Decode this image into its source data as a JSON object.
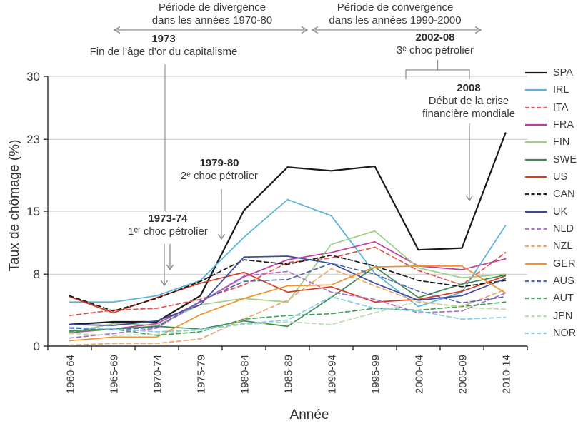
{
  "annotations": {
    "divergence": {
      "line1": "Période de divergence",
      "line2": "dans les années 1970-80"
    },
    "convergence": {
      "line1": "Période de convergence",
      "line2": "dans les années 1990-2000"
    },
    "end_golden_age": {
      "title": "1973",
      "subtitle": "Fin de l’âge d’or du capitalisme"
    },
    "oil_shock_1": {
      "title": "1973-74",
      "subtitle": "1ᵉʳ choc pétrolier"
    },
    "oil_shock_2": {
      "title": "1979-80",
      "subtitle": "2ᵉ choc pétrolier"
    },
    "oil_shock_3": {
      "title": "2002-08",
      "subtitle": "3ᵉ choc pétrolier"
    },
    "crisis_2008": {
      "title": "2008",
      "subtitle1": "Début de la crise",
      "subtitle2": "financière mondiale"
    }
  },
  "chart_data": {
    "type": "line",
    "title": "",
    "xlabel": "Année",
    "ylabel": "Taux de chômage (%)",
    "ylim": [
      0,
      30
    ],
    "yticks": [
      0,
      8,
      15,
      23,
      30
    ],
    "grid": "horizontal",
    "legend_position": "right",
    "axis_color": "#2b2b2b",
    "gridline_color": "#c9c9c9",
    "annotation_line_color": "#8e8e8e",
    "categories": [
      "1960-64",
      "1965-69",
      "1970-74",
      "1975-79",
      "1980-84",
      "1985-89",
      "1990-94",
      "1995-99",
      "2000-04",
      "2005-09",
      "2010-14"
    ],
    "series": [
      {
        "name": "SPA",
        "color": "#1a1a1a",
        "dash": false,
        "values": [
          2.4,
          2.7,
          2.7,
          5.6,
          15.1,
          19.9,
          19.5,
          20.0,
          10.7,
          10.9,
          23.7
        ]
      },
      {
        "name": "IRL",
        "color": "#55b3dc",
        "dash": false,
        "values": [
          4.9,
          4.9,
          5.6,
          7.3,
          12.1,
          16.3,
          14.5,
          8.1,
          4.4,
          6.0,
          13.4
        ]
      },
      {
        "name": "ITA",
        "color": "#e0524b",
        "dash": true,
        "values": [
          3.4,
          4.0,
          4.2,
          5.2,
          6.8,
          9.3,
          9.8,
          11.0,
          8.4,
          6.8,
          10.4
        ]
      },
      {
        "name": "FRA",
        "color": "#bb3d9d",
        "dash": false,
        "values": [
          1.5,
          1.9,
          2.5,
          4.9,
          7.7,
          9.6,
          10.4,
          11.6,
          8.9,
          8.5,
          9.7
        ]
      },
      {
        "name": "FIN",
        "color": "#9ccf85",
        "dash": false,
        "values": [
          1.5,
          2.5,
          2.3,
          4.6,
          5.3,
          4.9,
          11.3,
          12.8,
          8.7,
          7.6,
          8.0
        ]
      },
      {
        "name": "SWE",
        "color": "#3d8a51",
        "dash": false,
        "values": [
          1.7,
          1.9,
          2.2,
          1.9,
          2.8,
          2.2,
          5.4,
          8.8,
          5.4,
          6.9,
          7.9
        ]
      },
      {
        "name": "US",
        "color": "#d63a23",
        "dash": false,
        "values": [
          5.5,
          3.7,
          5.4,
          7.0,
          8.2,
          6.0,
          6.6,
          4.9,
          5.2,
          6.1,
          7.8
        ]
      },
      {
        "name": "CAN",
        "color": "#1a1a1a",
        "dash": true,
        "values": [
          5.6,
          3.9,
          5.3,
          7.2,
          9.6,
          9.1,
          10.1,
          8.9,
          7.3,
          6.6,
          7.3
        ]
      },
      {
        "name": "UK",
        "color": "#3c4b9f",
        "dash": false,
        "values": [
          2.4,
          2.3,
          2.8,
          4.6,
          9.9,
          10.0,
          9.2,
          7.0,
          5.1,
          5.6,
          7.5
        ]
      },
      {
        "name": "NLD",
        "color": "#a871c9",
        "dash": true,
        "values": [
          0.9,
          1.4,
          2.0,
          4.9,
          7.8,
          8.3,
          6.0,
          5.2,
          3.7,
          3.9,
          5.9
        ]
      },
      {
        "name": "NZL",
        "color": "#eda766",
        "dash": true,
        "values": [
          0.1,
          0.3,
          0.3,
          0.8,
          3.0,
          5.1,
          8.6,
          6.7,
          4.9,
          4.4,
          6.3
        ]
      },
      {
        "name": "GER",
        "color": "#f0922f",
        "dash": false,
        "values": [
          0.6,
          1.0,
          1.0,
          3.5,
          5.3,
          6.7,
          6.8,
          8.8,
          8.9,
          8.9,
          5.9
        ]
      },
      {
        "name": "AUS",
        "color": "#5066b2",
        "dash": true,
        "values": [
          2.0,
          1.8,
          2.1,
          5.0,
          7.2,
          7.4,
          9.2,
          8.0,
          6.1,
          4.8,
          5.5
        ]
      },
      {
        "name": "AUT",
        "color": "#3fa457",
        "dash": true,
        "values": [
          1.6,
          1.9,
          1.2,
          1.6,
          3.0,
          3.4,
          3.6,
          4.2,
          4.0,
          4.4,
          4.9
        ]
      },
      {
        "name": "JPN",
        "color": "#bddcab",
        "dash": true,
        "values": [
          1.4,
          1.2,
          1.3,
          1.9,
          2.4,
          2.7,
          2.4,
          3.7,
          5.0,
          4.3,
          4.1
        ]
      },
      {
        "name": "NOR",
        "color": "#85cae9",
        "dash": true,
        "values": [
          2.1,
          1.9,
          1.6,
          1.8,
          2.5,
          2.9,
          5.5,
          4.2,
          3.9,
          3.0,
          3.2
        ]
      }
    ]
  }
}
